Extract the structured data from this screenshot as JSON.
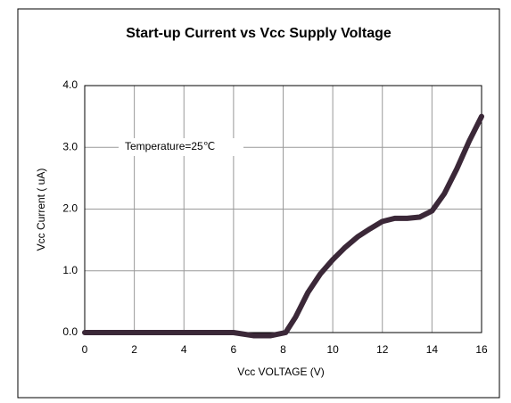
{
  "chart_data": {
    "type": "line",
    "title": "Start-up Current  vs Vcc Supply Voltage",
    "xlabel": "Vcc VOLTAGE (V)",
    "ylabel": "Vcc Current ( uA)",
    "annotation": "Temperature=25℃",
    "x": [
      0,
      1,
      2,
      3,
      4,
      5,
      6,
      6.8,
      7.5,
      8.1,
      8.5,
      9,
      9.5,
      10,
      10.5,
      11,
      11.5,
      12,
      12.5,
      13,
      13.5,
      14,
      14.5,
      15,
      15.5,
      16
    ],
    "series": [
      {
        "name": "Vcc Current",
        "color": "#3b2838",
        "values": [
          0,
          0,
          0,
          0,
          0,
          0,
          0,
          -0.05,
          -0.05,
          0,
          0.25,
          0.65,
          0.95,
          1.18,
          1.38,
          1.55,
          1.68,
          1.8,
          1.85,
          1.85,
          1.87,
          1.97,
          2.25,
          2.65,
          3.1,
          3.5
        ]
      }
    ],
    "xlim": [
      0,
      16
    ],
    "xticks": [
      0,
      2,
      4,
      6,
      8,
      10,
      12,
      14,
      16
    ],
    "ylim": [
      0,
      4
    ],
    "yticks": [
      {
        "value": 0,
        "label": "0.0"
      },
      {
        "value": 1,
        "label": "1.0"
      },
      {
        "value": 2,
        "label": "2.0"
      },
      {
        "value": 3,
        "label": "3.0"
      },
      {
        "value": 4,
        "label": "4.0"
      }
    ],
    "grid": true
  }
}
